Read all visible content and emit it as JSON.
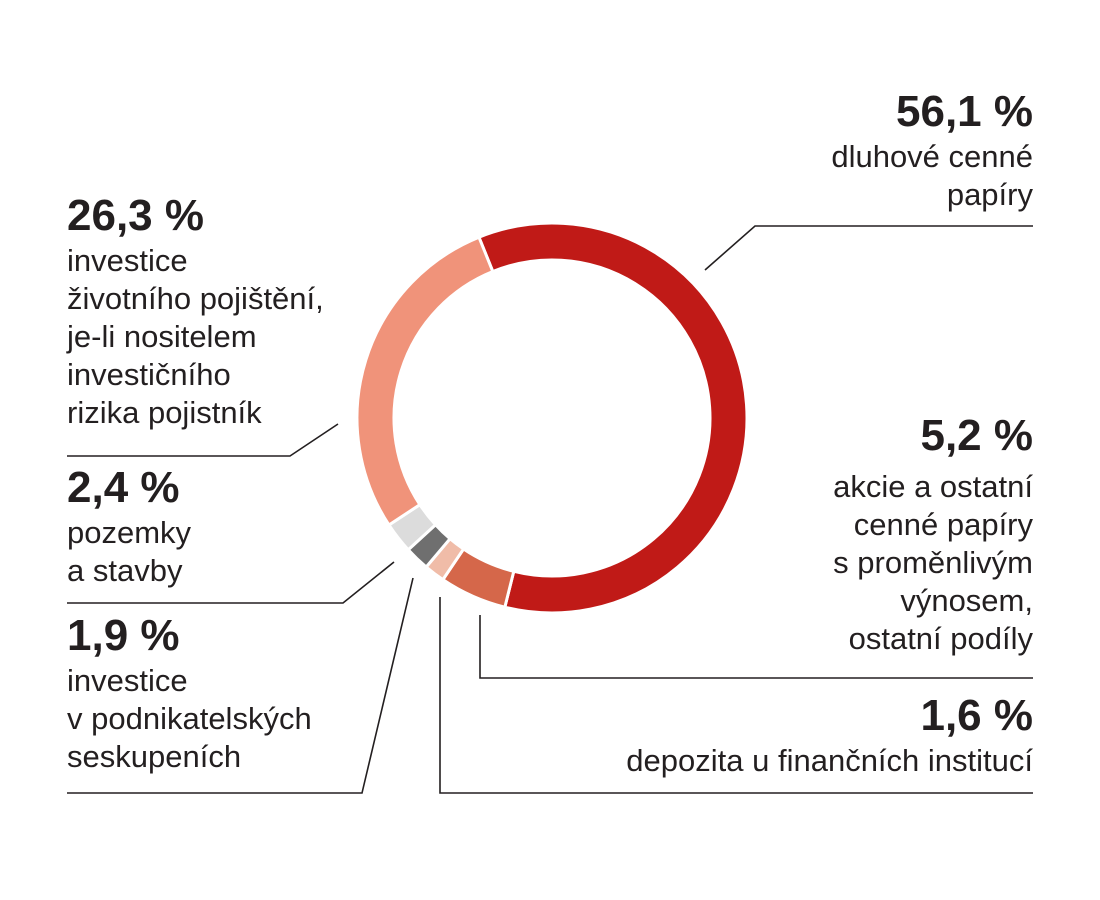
{
  "chart_data": {
    "type": "pie",
    "donut": true,
    "title": "",
    "start_angle_deg": -22,
    "direction": "clockwise",
    "slices": [
      {
        "value": 56.1,
        "pct_label": "56,1 %",
        "label": "dluhové cenné \npapíry",
        "color": "#c01a17"
      },
      {
        "value": 5.2,
        "pct_label": "5,2 %",
        "label": "akcie a ostatní\ncenné papíry\ns proměnlivým\nvýnosem,\nostatní podíly",
        "color": "#d5674a"
      },
      {
        "value": 1.6,
        "pct_label": "1,6 %",
        "label": "depozita u finančních institucí",
        "color": "#f0bca8"
      },
      {
        "value": 1.9,
        "pct_label": "1,9 %",
        "label": "investice\nv podnikatelských\nseskupeních",
        "color": "#6f6f6f"
      },
      {
        "value": 2.4,
        "pct_label": "2,4 %",
        "label": "pozemky\na stavby",
        "color": "#dcdcdc"
      },
      {
        "value": 26.3,
        "pct_label": "26,3 %",
        "label": "investice\nživotního pojištění,\nje-li nositelem\ninvestičního\nrizika pojistník",
        "color": "#f0937a"
      }
    ]
  }
}
